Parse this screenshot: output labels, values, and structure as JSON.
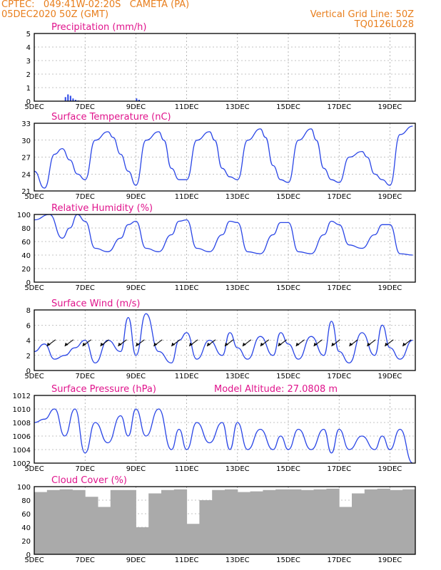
{
  "header": {
    "line1_left": "CPTEC:   049:41W-02:20S   CAMETA (PA)",
    "line2_left": "05DEC2020 50Z (GMT)",
    "line1_right": "Vertical Grid Line: 50Z",
    "line2_right": "TQ0126L028"
  },
  "colors": {
    "header": "#e87e1c",
    "title": "#e0148c",
    "series": "#2a46e6",
    "cloud": "#aaaaaa"
  },
  "x_ticks": [
    "5DEC",
    "7DEC",
    "9DEC",
    "11DEC",
    "13DEC",
    "15DEC",
    "17DEC",
    "19DEC"
  ],
  "chart_data": [
    {
      "type": "bar",
      "title": "Precipitation (mm/h)",
      "ylim": [
        0,
        5
      ],
      "yticks": [
        "0",
        "1",
        "2",
        "3",
        "4",
        "5"
      ],
      "x": [
        0.6,
        0.65,
        0.7,
        0.75,
        0.8,
        0.85,
        2.0,
        2.05
      ],
      "values": [
        0.3,
        0.5,
        0.4,
        0.2,
        0.1,
        0.05,
        0.2,
        0.1
      ]
    },
    {
      "type": "line",
      "title": "Surface Temperature (nC)",
      "ylim": [
        21,
        33
      ],
      "yticks": [
        "21",
        "24",
        "27",
        "30",
        "33"
      ],
      "x": [
        0,
        0.2,
        0.4,
        0.55,
        0.7,
        0.85,
        1.0,
        1.2,
        1.45,
        1.55,
        1.7,
        1.85,
        2.0,
        2.2,
        2.45,
        2.55,
        2.7,
        2.85,
        3.0,
        3.2,
        3.45,
        3.55,
        3.7,
        3.85,
        4.0,
        4.2,
        4.45,
        4.55,
        4.7,
        4.85,
        5.0,
        5.2,
        5.45,
        5.55,
        5.7,
        5.85,
        6.0,
        6.2,
        6.45,
        6.55,
        6.7,
        6.85,
        7.0,
        7.2,
        7.45
      ],
      "values": [
        24.5,
        21.5,
        27.5,
        28.5,
        26.5,
        24,
        23,
        30,
        31.5,
        30.5,
        27.5,
        24.5,
        22,
        30,
        31.5,
        30,
        25,
        23,
        23,
        30,
        31.5,
        30,
        25,
        23.5,
        23,
        30,
        32,
        30.5,
        25.5,
        23,
        22.5,
        30,
        32,
        30,
        25,
        23,
        22.5,
        27,
        28,
        27,
        24,
        23,
        22,
        31,
        32.5
      ]
    },
    {
      "type": "line",
      "title": "Relative Humidity (%)",
      "ylim": [
        0,
        100
      ],
      "yticks": [
        "0",
        "20",
        "40",
        "60",
        "80",
        "100"
      ],
      "x": [
        0,
        0.3,
        0.55,
        0.7,
        0.85,
        1.0,
        1.2,
        1.45,
        1.7,
        1.85,
        2.0,
        2.2,
        2.45,
        2.7,
        2.85,
        3.0,
        3.2,
        3.45,
        3.7,
        3.85,
        4.0,
        4.2,
        4.45,
        4.7,
        4.85,
        5.0,
        5.2,
        5.45,
        5.7,
        5.85,
        6.0,
        6.2,
        6.45,
        6.7,
        6.85,
        7.0,
        7.2,
        7.45
      ],
      "values": [
        92,
        100,
        65,
        80,
        100,
        90,
        50,
        45,
        65,
        85,
        90,
        50,
        45,
        70,
        90,
        92,
        50,
        45,
        70,
        90,
        88,
        45,
        42,
        70,
        88,
        88,
        45,
        42,
        70,
        90,
        85,
        55,
        50,
        70,
        85,
        85,
        42,
        40
      ]
    },
    {
      "type": "line",
      "title": "Surface Wind (m/s)",
      "ylim": [
        0,
        8
      ],
      "yticks": [
        "0",
        "2",
        "4",
        "6",
        "8"
      ],
      "x": [
        0,
        0.2,
        0.4,
        0.6,
        0.8,
        1.0,
        1.2,
        1.45,
        1.7,
        1.85,
        2.0,
        2.2,
        2.45,
        2.7,
        2.85,
        3.0,
        3.2,
        3.45,
        3.7,
        3.85,
        4.0,
        4.2,
        4.45,
        4.7,
        4.85,
        5.0,
        5.2,
        5.45,
        5.7,
        5.85,
        6.0,
        6.2,
        6.45,
        6.7,
        6.85,
        7.0,
        7.2,
        7.45
      ],
      "values": [
        2.5,
        3.5,
        1.5,
        2.0,
        3.0,
        4.0,
        1.0,
        4.0,
        2.5,
        7.0,
        2.0,
        7.5,
        2.5,
        1.0,
        4.0,
        5.0,
        1.5,
        4.0,
        2.0,
        5.0,
        3.0,
        1.5,
        4.5,
        2.0,
        5.0,
        3.5,
        1.5,
        4.5,
        2.0,
        6.5,
        2.5,
        1.0,
        5.0,
        2.0,
        6.0,
        3.0,
        1.5,
        4.0
      ]
    },
    {
      "type": "line",
      "title": "Surface Pressure (hPa)",
      "annotation": "Model Altitude: 27.0808 m",
      "ylim": [
        1002,
        1012
      ],
      "yticks": [
        "1002",
        "1004",
        "1006",
        "1008",
        "1010",
        "1012"
      ],
      "x": [
        0,
        0.2,
        0.4,
        0.6,
        0.8,
        1.0,
        1.2,
        1.45,
        1.7,
        1.85,
        2.0,
        2.2,
        2.45,
        2.7,
        2.85,
        3.0,
        3.2,
        3.45,
        3.7,
        3.85,
        4.0,
        4.2,
        4.45,
        4.7,
        4.85,
        5.0,
        5.2,
        5.45,
        5.7,
        5.85,
        6.0,
        6.2,
        6.45,
        6.7,
        6.85,
        7.0,
        7.2,
        7.45
      ],
      "values": [
        1008,
        1008.5,
        1010,
        1006,
        1010,
        1003.5,
        1008,
        1005,
        1009,
        1006,
        1010,
        1006,
        1010,
        1004,
        1007,
        1004,
        1008,
        1005,
        1008,
        1004,
        1008,
        1004,
        1007,
        1004,
        1006,
        1004,
        1007,
        1004,
        1007,
        1003.5,
        1007,
        1004,
        1006,
        1004,
        1006,
        1004,
        1007,
        1002
      ]
    },
    {
      "type": "bar",
      "title": "Cloud Cover (%)",
      "ylim": [
        0,
        100
      ],
      "yticks": [
        "0",
        "20",
        "40",
        "60",
        "80",
        "100"
      ],
      "x": [
        0.0,
        0.25,
        0.5,
        0.75,
        1.0,
        1.25,
        1.5,
        1.75,
        2.0,
        2.25,
        2.5,
        2.75,
        3.0,
        3.25,
        3.5,
        3.75,
        4.0,
        4.25,
        4.5,
        4.75,
        5.0,
        5.25,
        5.5,
        5.75,
        6.0,
        6.25,
        6.5,
        6.75,
        7.0,
        7.25
      ],
      "values": [
        92,
        95,
        96,
        95,
        85,
        70,
        95,
        95,
        40,
        90,
        95,
        96,
        45,
        80,
        95,
        96,
        92,
        93,
        95,
        96,
        96,
        95,
        96,
        97,
        70,
        90,
        96,
        97,
        95,
        96
      ]
    }
  ]
}
